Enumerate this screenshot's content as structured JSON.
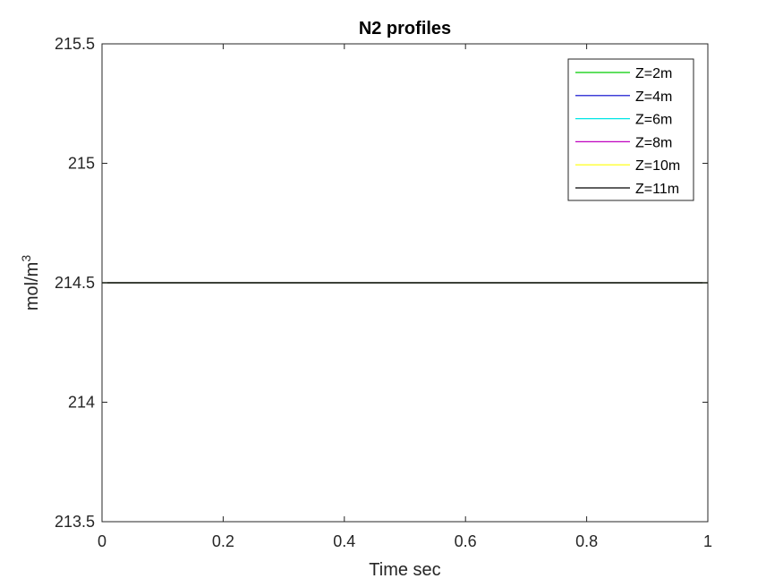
{
  "chart_data": {
    "type": "line",
    "title": "N2 profiles",
    "xlabel": "Time sec",
    "ylabel": "mol/m",
    "ylabel_superscript": "3",
    "xlim": [
      0,
      1
    ],
    "ylim": [
      213.5,
      215.5
    ],
    "x_ticks": [
      0,
      0.2,
      0.4,
      0.6,
      0.8,
      1
    ],
    "x_tick_labels": [
      "0",
      "0.2",
      "0.4",
      "0.6",
      "0.8",
      "1"
    ],
    "y_ticks": [
      213.5,
      214,
      214.5,
      215,
      215.5
    ],
    "y_tick_labels": [
      "213.5",
      "214",
      "214.5",
      "215",
      "215.5"
    ],
    "grid": false,
    "legend_position": "top-right",
    "series": [
      {
        "name": "Z=2m",
        "color": "#00cc00",
        "x": [
          0,
          1
        ],
        "y": [
          214.5,
          214.5
        ]
      },
      {
        "name": "Z=4m",
        "color": "#0000cc",
        "x": [
          0,
          1
        ],
        "y": [
          214.5,
          214.5
        ]
      },
      {
        "name": "Z=6m",
        "color": "#00e5e5",
        "x": [
          0,
          1
        ],
        "y": [
          214.5,
          214.5
        ]
      },
      {
        "name": "Z=8m",
        "color": "#bf00bf",
        "x": [
          0,
          1
        ],
        "y": [
          214.5,
          214.5
        ]
      },
      {
        "name": "Z=10m",
        "color": "#ffff00",
        "x": [
          0,
          1
        ],
        "y": [
          214.5,
          214.5
        ]
      },
      {
        "name": "Z=11m",
        "color": "#000000",
        "x": [
          0,
          1
        ],
        "y": [
          214.5,
          214.5
        ]
      }
    ]
  }
}
